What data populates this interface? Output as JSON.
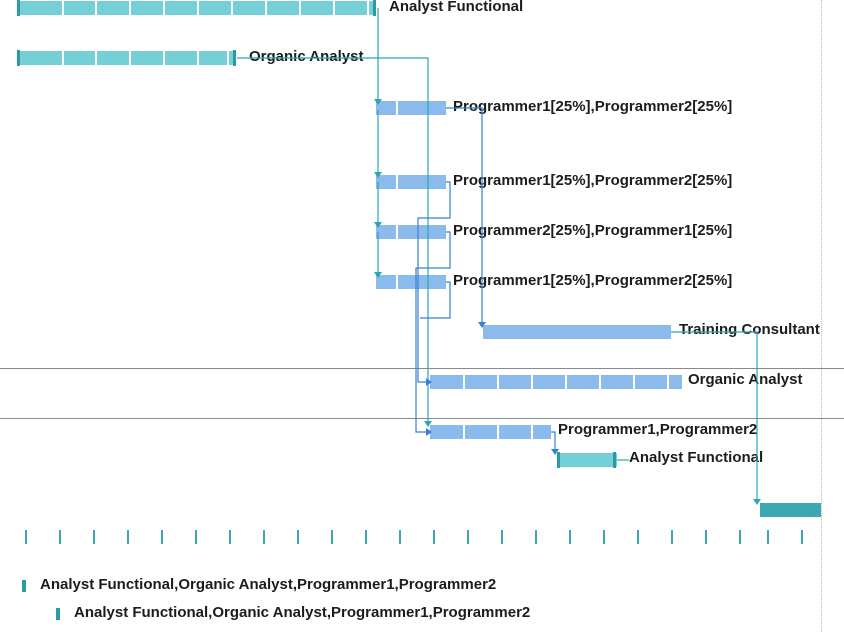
{
  "rows": {
    "analyst_functional_top": "Analyst Functional",
    "organic_analyst_top": "Organic Analyst",
    "task_a": "Programmer1[25%],Programmer2[25%]",
    "task_b": "Programmer1[25%],Programmer2[25%]",
    "task_c": "Programmer2[25%],Programmer1[25%]",
    "task_d": "Programmer1[25%],Programmer2[25%]",
    "training": "Training Consultant",
    "organic_analyst_mid": "Organic Analyst",
    "programmers": "Programmer1,Programmer2",
    "analyst_functional_mid": "Analyst Functional"
  },
  "legend": {
    "line1": "Analyst Functional,Organic Analyst,Programmer1,Programmer2",
    "line2": "Analyst Functional,Organic Analyst,Programmer1,Programmer2"
  },
  "colors": {
    "teal": "#74cfd6",
    "blue": "#8bbbed",
    "link_teal": "#2aa7b0",
    "link_blue": "#3a7fd0"
  }
}
